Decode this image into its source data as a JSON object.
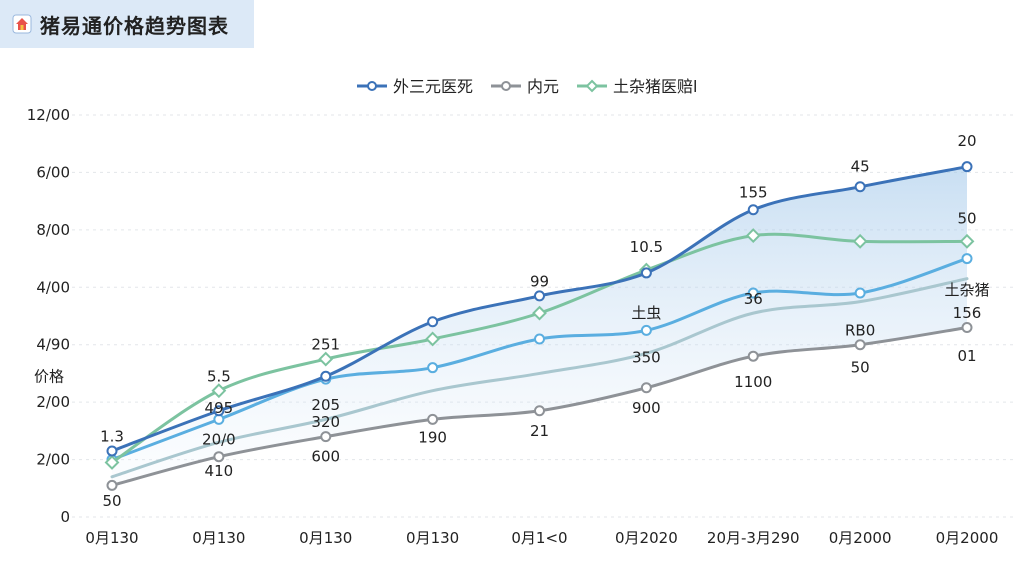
{
  "title": "猪易通价格趋势图表",
  "colors": {
    "accent": "#2f6db5",
    "s1": "#3b72b8",
    "s2": "#8e9297",
    "s3": "#7cc3a0",
    "s4": "#5aaee0",
    "s5": "#a9c7cf"
  },
  "chart_data": {
    "type": "line",
    "title": "猪易通价格趋势图表",
    "ylabel": "价格",
    "xlabel": "",
    "categories": [
      "0月130",
      "0月130",
      "0月130",
      "0月130",
      "0月1<0",
      "0月2020",
      "20月-3月290",
      "0月2000",
      "0月2000"
    ],
    "ytick_labels": [
      "0",
      "2/00",
      "2/00",
      "4/90",
      "4/00",
      "8/00",
      "6/00",
      "12/00"
    ],
    "ylim": [
      0,
      7
    ],
    "grid": true,
    "legend_position": "top-center",
    "series": [
      {
        "name": "外三元医死",
        "values": [
          1.15,
          1.85,
          2.45,
          3.4,
          3.85,
          4.25,
          5.35,
          5.75,
          6.1
        ],
        "color": "#3b72b8",
        "marker": "circle"
      },
      {
        "name": "内元",
        "values": [
          0.55,
          1.05,
          1.4,
          1.7,
          1.85,
          2.25,
          2.8,
          3.0,
          3.3
        ],
        "color": "#8e9297",
        "marker": "circle"
      },
      {
        "name": "土杂猪医赔l",
        "values": [
          0.95,
          2.2,
          2.75,
          3.1,
          3.55,
          4.3,
          4.9,
          4.8,
          4.8
        ],
        "color": "#7cc3a0",
        "marker": "diamond"
      },
      {
        "values": [
          1.0,
          1.7,
          2.4,
          2.6,
          3.1,
          3.25,
          3.9,
          3.9,
          4.5
        ],
        "color": "#5aaee0",
        "marker": "circle"
      },
      {
        "values": [
          0.7,
          1.3,
          1.7,
          2.2,
          2.5,
          2.85,
          3.55,
          3.75,
          4.15
        ],
        "color": "#a9c7cf",
        "marker": "none"
      }
    ],
    "data_labels": [
      {
        "text": "1.3",
        "ci": 0,
        "yv": 1.4
      },
      {
        "text": "50",
        "ci": 0,
        "yv": 0.28
      },
      {
        "text": "5.5",
        "ci": 1,
        "yv": 2.45
      },
      {
        "text": "495",
        "ci": 1,
        "yv": 1.9
      },
      {
        "text": "20/0",
        "ci": 1,
        "yv": 1.35
      },
      {
        "text": "410",
        "ci": 1,
        "yv": 0.8
      },
      {
        "text": "251",
        "ci": 2,
        "yv": 3.0
      },
      {
        "text": "205",
        "ci": 2,
        "yv": 1.95
      },
      {
        "text": "320",
        "ci": 2,
        "yv": 1.65
      },
      {
        "text": "600",
        "ci": 2,
        "yv": 1.05
      },
      {
        "text": "190",
        "ci": 3,
        "yv": 1.38
      },
      {
        "text": "99",
        "ci": 4,
        "yv": 4.1
      },
      {
        "text": "21",
        "ci": 4,
        "yv": 1.5
      },
      {
        "text": "10.5",
        "ci": 5,
        "yv": 4.7
      },
      {
        "text": "土虫",
        "ci": 5,
        "yv": 3.55
      },
      {
        "text": "350",
        "ci": 5,
        "yv": 2.78
      },
      {
        "text": "900",
        "ci": 5,
        "yv": 1.9
      },
      {
        "text": "155",
        "ci": 6,
        "yv": 5.65
      },
      {
        "text": "36",
        "ci": 6,
        "yv": 3.8
      },
      {
        "text": "1100",
        "ci": 6,
        "yv": 2.35
      },
      {
        "text": "45",
        "ci": 7,
        "yv": 6.1
      },
      {
        "text": "RB0",
        "ci": 7,
        "yv": 3.25
      },
      {
        "text": "50",
        "ci": 7,
        "yv": 2.6
      },
      {
        "text": "20",
        "ci": 8,
        "yv": 6.55
      },
      {
        "text": "50",
        "ci": 8,
        "yv": 5.2
      },
      {
        "text": "土杂猪",
        "ci": 8,
        "yv": 3.95
      },
      {
        "text": "156",
        "ci": 8,
        "yv": 3.55
      },
      {
        "text": "01",
        "ci": 8,
        "yv": 2.8
      }
    ]
  }
}
